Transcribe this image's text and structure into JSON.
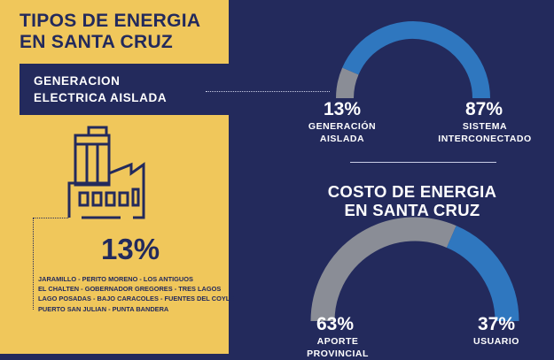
{
  "header": {
    "title_line1": "TIPOS DE ENERGIA",
    "title_line2": "EN SANTA CRUZ"
  },
  "band": {
    "line1": "GENERACION",
    "line2": "ELECTRICA AISLADA"
  },
  "left_panel": {
    "big_percent": "13%",
    "towns": [
      "JARAMILLO - PERITO MORENO - LOS ANTIGUOS",
      "EL CHALTEN - GOBERNADOR GREGORES - TRES LAGOS",
      "LAGO POSADAS - BAJO CARACOLES - FUENTES DEL COYLE",
      "PUERTO SAN JULIAN - PUNTA BANDERA"
    ],
    "icon": "factory-icon"
  },
  "colors": {
    "navy": "#232a5c",
    "yellow": "#f0c75b",
    "blue": "#2f77bf",
    "gray": "#8a8d96",
    "white": "#ffffff"
  },
  "chart_data": [
    {
      "type": "pie",
      "style": "semicircle-gauge",
      "title": "",
      "slices": [
        {
          "pct_label": "13%",
          "label_line1": "GENERACIÓN",
          "label_line2": "AISLADA",
          "value": 13,
          "color": "#8a8d96"
        },
        {
          "pct_label": "87%",
          "label_line1": "SISTEMA",
          "label_line2": "INTERCONECTADO",
          "value": 87,
          "color": "#2f77bf"
        }
      ]
    },
    {
      "type": "pie",
      "style": "semicircle-gauge",
      "title_line1": "COSTO DE ENERGIA",
      "title_line2": "EN SANTA CRUZ",
      "slices": [
        {
          "pct_label": "63%",
          "label_line1": "APORTE",
          "label_line2": "PROVINCIAL",
          "value": 63,
          "color": "#8a8d96"
        },
        {
          "pct_label": "37%",
          "label_line1": "USUARIO",
          "label_line2": "",
          "value": 37,
          "color": "#2f77bf"
        }
      ]
    }
  ]
}
